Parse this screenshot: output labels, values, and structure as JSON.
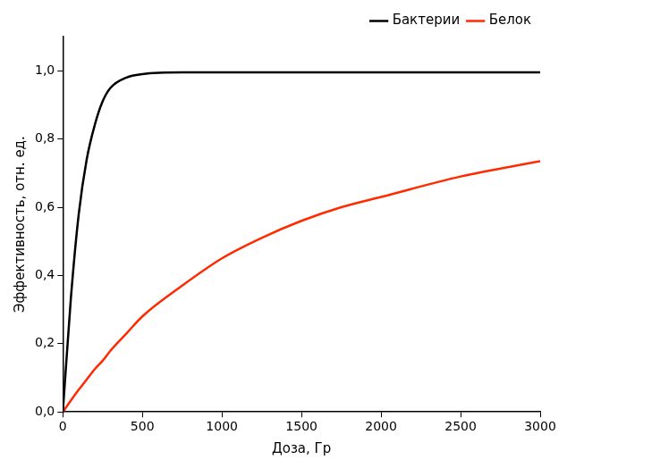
{
  "chart_data": {
    "type": "line",
    "x_label": "Доза, Гр",
    "y_label": "Эффективность, отн. ед.",
    "x": [
      0,
      50,
      100,
      150,
      200,
      250,
      300,
      400,
      500,
      750,
      1000,
      1250,
      1500,
      1750,
      2000,
      2500,
      3000
    ],
    "series": [
      {
        "name": "Бактерии",
        "color": "#000000",
        "line_style": "solid",
        "values": [
          0,
          0.33,
          0.58,
          0.74,
          0.84,
          0.91,
          0.95,
          0.98,
          0.99,
          0.995,
          0.995,
          0.995,
          0.995,
          0.995,
          0.995,
          0.995,
          0.995
        ]
      },
      {
        "name": "Белок",
        "color": "#ff2a00",
        "line_style": "solid",
        "values": [
          0,
          0.033,
          0.065,
          0.095,
          0.125,
          0.15,
          0.18,
          0.23,
          0.28,
          0.37,
          0.45,
          0.51,
          0.56,
          0.6,
          0.63,
          0.69,
          0.735
        ]
      }
    ],
    "xlim": [
      0,
      3000
    ],
    "xticks": [
      0,
      500,
      1000,
      1500,
      2000,
      2500,
      3000
    ],
    "ylim": [
      0,
      1.1
    ],
    "yticks": [
      {
        "value": 0,
        "label": "0,0"
      },
      {
        "value": 0.2,
        "label": "0,2"
      },
      {
        "value": 0.4,
        "label": "0,4"
      },
      {
        "value": 0.6,
        "label": "0,6"
      },
      {
        "value": 0.8,
        "label": "0,8"
      },
      {
        "value": 1.0,
        "label": "1,0"
      }
    ],
    "grid": false,
    "legend": "upper right"
  }
}
